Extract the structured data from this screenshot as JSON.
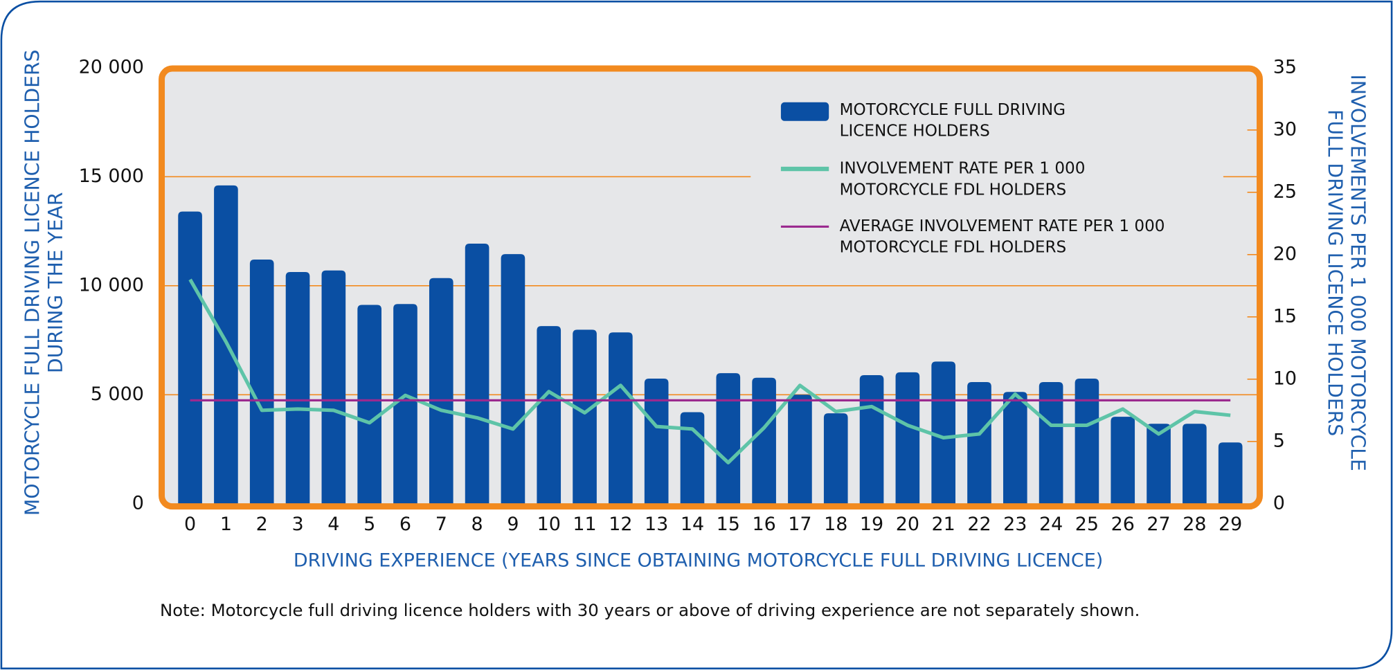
{
  "chart_data": {
    "type": "bar",
    "x_label": "DRIVING EXPERIENCE (YEARS SINCE OBTAINING MOTORCYCLE FULL DRIVING LICENCE)",
    "y_label": "MOTORCYCLE FULL DRIVING LICENCE HOLDERS\nDURING THE YEAR",
    "y2_label": "INVOLVEMENTS PER 1 000 MOTORCYCLE\nFULL DRIVING LICENCE HOLDERS",
    "note": "Note: Motorcycle full driving licence holders with 30 years or above of driving experience are not separately shown.",
    "categories": [
      "0",
      "1",
      "2",
      "3",
      "4",
      "5",
      "6",
      "7",
      "8",
      "9",
      "10",
      "11",
      "12",
      "13",
      "14",
      "15",
      "16",
      "17",
      "18",
      "19",
      "20",
      "21",
      "22",
      "23",
      "24",
      "25",
      "26",
      "27",
      "28",
      "29"
    ],
    "series": [
      {
        "name": "MOTORCYCLE FULL DRIVING\nLICENCE HOLDERS",
        "type": "bar",
        "axis": "y",
        "color": "#0a4fa3",
        "values": [
          13400,
          14600,
          11200,
          10630,
          10700,
          9120,
          9160,
          10350,
          11930,
          11450,
          8150,
          7980,
          7860,
          5740,
          4200,
          5990,
          5780,
          5000,
          4150,
          5900,
          6030,
          6520,
          5580,
          5130,
          5580,
          5740,
          3990,
          3670,
          3670,
          2810
        ]
      },
      {
        "name": "INVOLVEMENT RATE PER 1 000\nMOTORCYCLE FDL HOLDERS",
        "type": "line",
        "axis": "y2",
        "color": "#5ec4a8",
        "values": [
          18.0,
          13.0,
          7.5,
          7.6,
          7.5,
          6.5,
          8.7,
          7.5,
          6.9,
          6.0,
          9.0,
          7.3,
          9.5,
          6.2,
          6.0,
          3.3,
          6.1,
          9.5,
          7.4,
          7.8,
          6.3,
          5.3,
          5.6,
          8.8,
          6.3,
          6.3,
          7.6,
          5.6,
          7.4,
          7.1
        ]
      },
      {
        "name": "AVERAGE INVOLVEMENT RATE PER 1 000\nMOTORCYCLE FDL HOLDERS",
        "type": "hline",
        "axis": "y2",
        "color": "#9b2a8f",
        "value": 8.3
      }
    ],
    "ylim": [
      0,
      20000
    ],
    "yticks": [
      {
        "value": 0,
        "label": "0"
      },
      {
        "value": 5000,
        "label": "5 000"
      },
      {
        "value": 10000,
        "label": "10 000"
      },
      {
        "value": 15000,
        "label": "15 000"
      },
      {
        "value": 20000,
        "label": "20 000"
      }
    ],
    "y2lim": [
      0,
      35
    ],
    "y2ticks": [
      0,
      5,
      10,
      15,
      20,
      25,
      30,
      35
    ],
    "grid": true,
    "grid_color": "#f28a1f"
  }
}
